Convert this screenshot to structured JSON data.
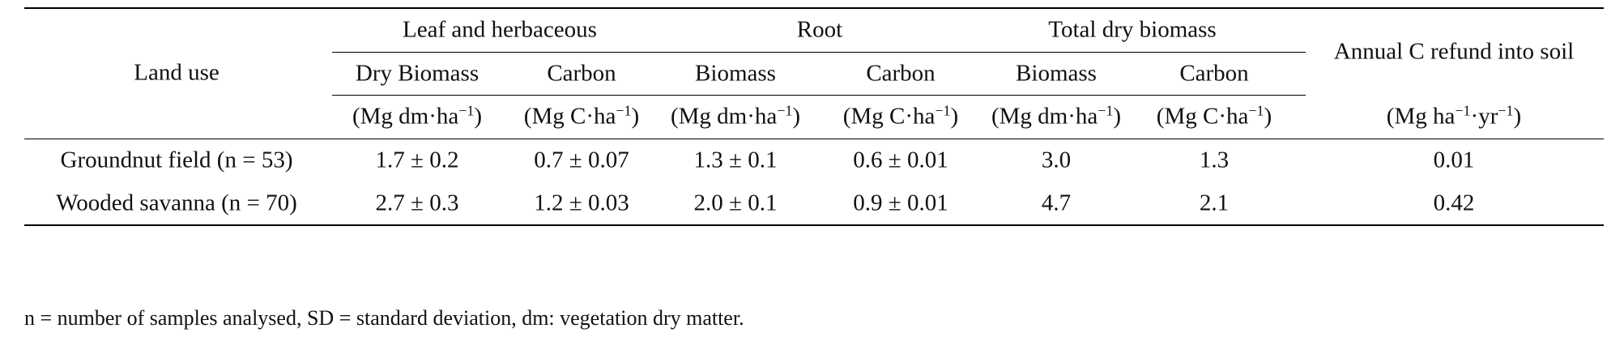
{
  "table": {
    "header": {
      "land_use": "Land use",
      "group_leaf": "Leaf and herbaceous",
      "group_root": "Root",
      "group_total": "Total dry biomass",
      "annual": "Annual C refund into soil",
      "sub_dry_biomass": "Dry Biomass",
      "sub_carbon_1": "Carbon",
      "sub_biomass_root": "Biomass",
      "sub_carbon_2": "Carbon",
      "sub_biomass_total": "Biomass",
      "sub_carbon_3": "Carbon",
      "units": {
        "u1_pre": "(Mg dm·ha",
        "u1_sup": "−1",
        "u1_post": ")",
        "u2_pre": "(Mg C·ha",
        "u2_sup": "−1",
        "u2_post": ")",
        "u3_pre": "(Mg dm·ha",
        "u3_sup": "−1",
        "u3_post": ")",
        "u4_pre": "(Mg C·ha",
        "u4_sup": "−1",
        "u4_post": ")",
        "u5_pre": "(Mg dm·ha",
        "u5_sup": "−1",
        "u5_post": ")",
        "u6_pre": "(Mg C·ha",
        "u6_sup": "−1",
        "u6_post": ")",
        "u7_a": "(Mg ha",
        "u7_sup1": "−1",
        "u7_b": "·yr",
        "u7_sup2": "−1",
        "u7_c": ")"
      }
    },
    "rows": [
      {
        "land_use": "Groundnut field (n = 53)",
        "leaf_biomass": "1.7 ± 0.2",
        "leaf_carbon": "0.7 ± 0.07",
        "root_biomass": "1.3 ± 0.1",
        "root_carbon": "0.6 ± 0.01",
        "total_biomass": "3.0",
        "total_carbon": "1.3",
        "annual_refund": "0.01"
      },
      {
        "land_use": "Wooded savanna (n = 70)",
        "leaf_biomass": "2.7 ± 0.3",
        "leaf_carbon": "1.2 ± 0.03",
        "root_biomass": "2.0 ± 0.1",
        "root_carbon": "0.9 ± 0.01",
        "total_biomass": "4.7",
        "total_carbon": "2.1",
        "annual_refund": "0.42"
      }
    ]
  },
  "footnote": "n = number of samples analysed, SD = standard deviation, dm: vegetation dry matter."
}
